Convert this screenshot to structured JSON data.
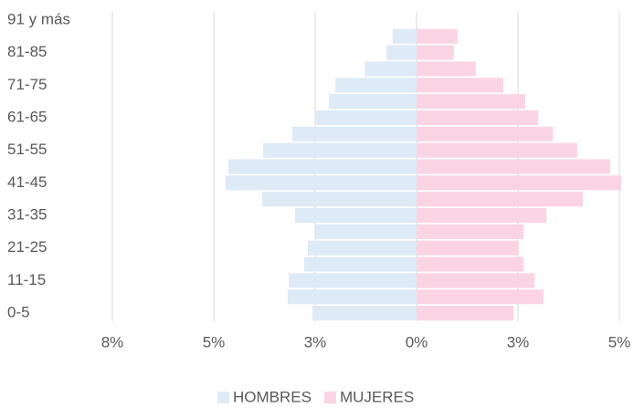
{
  "chart_data": {
    "type": "pyramid",
    "categories": [
      "0-5",
      null,
      "11-15",
      null,
      "21-25",
      null,
      "31-35",
      null,
      "41-45",
      null,
      "51-55",
      null,
      "61-65",
      null,
      "71-75",
      null,
      "81-85",
      null,
      "91 y más"
    ],
    "series": [
      {
        "name": "HOMBRES",
        "color": "#deeaf6",
        "values": [
          -2.57,
          -3.18,
          -3.15,
          -2.77,
          -2.68,
          -2.52,
          -3.0,
          -3.81,
          -4.71,
          -4.64,
          -3.78,
          -3.06,
          -2.48,
          -2.16,
          -2.0,
          -1.28,
          -0.74,
          -0.59,
          0
        ]
      },
      {
        "name": "MUJERES",
        "color": "#fbd4e3",
        "values": [
          2.39,
          3.13,
          2.91,
          2.64,
          2.52,
          2.64,
          3.2,
          4.1,
          5.05,
          4.77,
          3.96,
          3.36,
          3.0,
          2.68,
          2.14,
          1.46,
          0.92,
          1.01,
          0
        ]
      }
    ],
    "xlim": [
      -7.5,
      5
    ],
    "xticks": [
      {
        "value": -7.5,
        "label": "8%"
      },
      {
        "value": -5,
        "label": "5%"
      },
      {
        "value": -2.5,
        "label": "3%"
      },
      {
        "value": 0,
        "label": "0%"
      },
      {
        "value": 2.5,
        "label": "3%"
      },
      {
        "value": 5,
        "label": "5%"
      }
    ],
    "grid": true,
    "legend": "bottom"
  }
}
